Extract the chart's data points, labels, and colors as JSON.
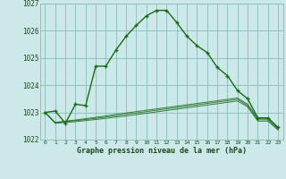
{
  "title": "Graphe pression niveau de la mer (hPa)",
  "hours": [
    0,
    1,
    2,
    3,
    4,
    5,
    6,
    7,
    8,
    9,
    10,
    11,
    12,
    13,
    14,
    15,
    16,
    17,
    18,
    19,
    20,
    21,
    22,
    23
  ],
  "ylim": [
    1022.0,
    1027.0
  ],
  "yticks": [
    1022,
    1023,
    1024,
    1025,
    1026,
    1027
  ],
  "bg_color": "#cce8e8",
  "grid_color": "#88bbbb",
  "line_color": "#1a6b1a",
  "main_line": [
    1023.0,
    1023.05,
    1022.6,
    1023.3,
    1023.25,
    1024.7,
    1024.7,
    1025.3,
    1025.8,
    1026.2,
    1026.55,
    1026.75,
    1026.75,
    1026.3,
    1025.8,
    1025.45,
    1025.2,
    1024.65,
    1024.35,
    1023.8,
    1023.5,
    1022.8,
    1022.8,
    1022.45
  ],
  "ref_line1": [
    1023.0,
    1022.63,
    1022.68,
    1022.72,
    1022.77,
    1022.82,
    1022.87,
    1022.93,
    1022.98,
    1023.03,
    1023.08,
    1023.13,
    1023.18,
    1023.23,
    1023.28,
    1023.33,
    1023.38,
    1023.43,
    1023.48,
    1023.53,
    1023.3,
    1022.78,
    1022.78,
    1022.42
  ],
  "ref_line2": [
    1023.0,
    1022.62,
    1022.66,
    1022.7,
    1022.74,
    1022.78,
    1022.83,
    1022.88,
    1022.93,
    1022.98,
    1023.03,
    1023.08,
    1023.13,
    1023.18,
    1023.23,
    1023.28,
    1023.33,
    1023.38,
    1023.43,
    1023.48,
    1023.25,
    1022.73,
    1022.73,
    1022.38
  ],
  "ref_line3": [
    1023.0,
    1022.6,
    1022.63,
    1022.66,
    1022.7,
    1022.74,
    1022.78,
    1022.83,
    1022.87,
    1022.92,
    1022.97,
    1023.02,
    1023.07,
    1023.12,
    1023.17,
    1023.22,
    1023.27,
    1023.32,
    1023.37,
    1023.42,
    1023.2,
    1022.68,
    1022.68,
    1022.35
  ]
}
